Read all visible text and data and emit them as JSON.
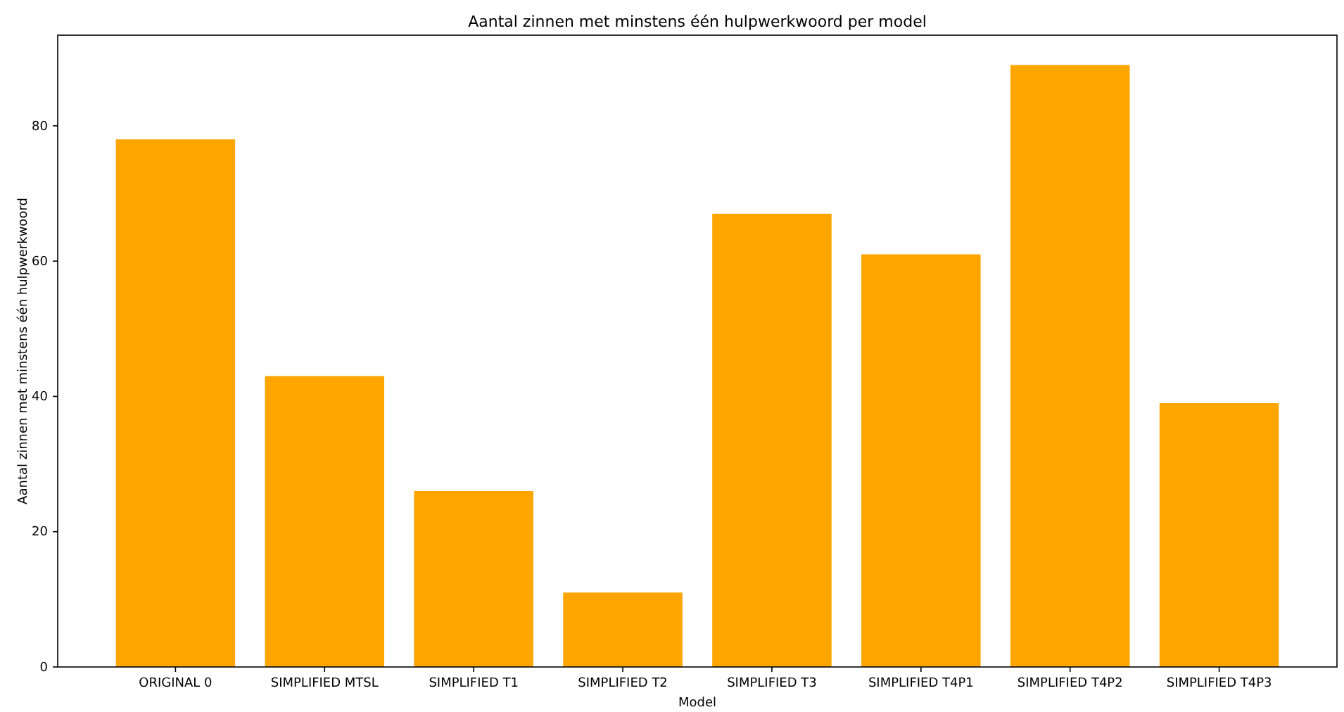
{
  "chart_data": {
    "type": "bar",
    "title": "Aantal zinnen met minstens één hulpwerkwoord per model",
    "xlabel": "Model",
    "ylabel": "Aantal zinnen met minstens één hulpwerkwoord",
    "categories": [
      "ORIGINAL 0",
      "SIMPLIFIED MTSL",
      "SIMPLIFIED T1",
      "SIMPLIFIED T2",
      "SIMPLIFIED T3",
      "SIMPLIFIED T4P1",
      "SIMPLIFIED T4P2",
      "SIMPLIFIED T4P3"
    ],
    "values": [
      78,
      43,
      26,
      11,
      67,
      61,
      89,
      39
    ],
    "color": "#ffa500",
    "ylim": [
      0,
      93.4
    ],
    "yticks": [
      0,
      20,
      40,
      60,
      80
    ],
    "grid": false
  }
}
